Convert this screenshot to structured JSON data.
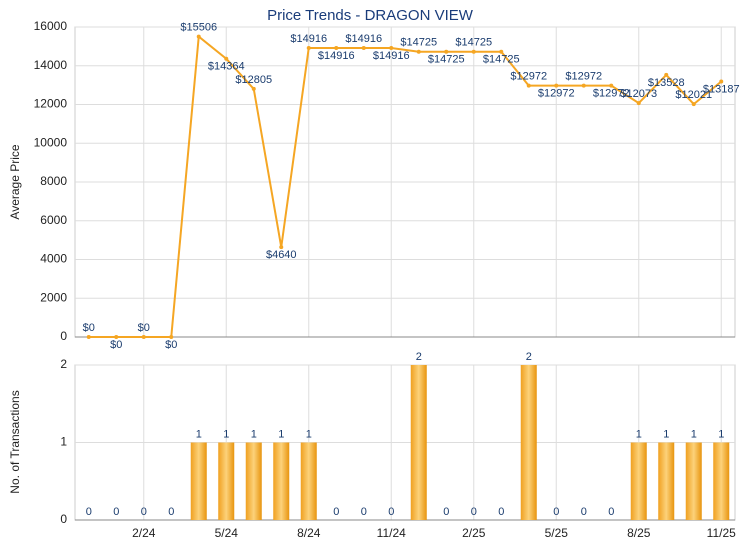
{
  "chart_data": [
    {
      "type": "line",
      "title": "Price Trends - DRAGON VIEW",
      "y_label": "Average Price",
      "color": "#f5a623",
      "values": [
        0,
        0,
        0,
        0,
        15506,
        14364,
        12805,
        4640,
        14916,
        14916,
        14916,
        14916,
        14725,
        14725,
        14725,
        14725,
        12972,
        12972,
        12972,
        12972,
        12073,
        13528,
        12021,
        13187
      ],
      "value_labels": [
        "$0",
        "$0",
        "$0",
        "$0",
        "$15506",
        "$14364",
        "$12805",
        "$4640",
        "$14916",
        "$14916",
        "$14916",
        "$14916",
        "$14725",
        "$14725",
        "$14725",
        "$14725",
        "$12972",
        "$12972",
        "$12972",
        "$12972",
        "$12073",
        "$13528",
        "$12021",
        "$13187"
      ],
      "ylim": [
        0,
        16000
      ],
      "yticks": [
        0,
        2000,
        4000,
        6000,
        8000,
        10000,
        12000,
        14000,
        16000
      ],
      "grid": true
    },
    {
      "type": "bar",
      "y_label": "No. of Transactions",
      "color": "#f5a623",
      "categories": [
        null,
        null,
        "2/24",
        null,
        null,
        "5/24",
        null,
        null,
        "8/24",
        null,
        null,
        "11/24",
        null,
        null,
        "2/25",
        null,
        null,
        "5/25",
        null,
        null,
        "8/25",
        null,
        null,
        "11/25"
      ],
      "values": [
        0,
        0,
        0,
        0,
        1,
        1,
        1,
        1,
        1,
        0,
        0,
        0,
        2,
        0,
        0,
        0,
        2,
        0,
        0,
        0,
        1,
        1,
        1,
        1
      ],
      "ylim": [
        0,
        2
      ],
      "yticks": [
        0,
        1,
        2
      ],
      "grid": true
    }
  ]
}
